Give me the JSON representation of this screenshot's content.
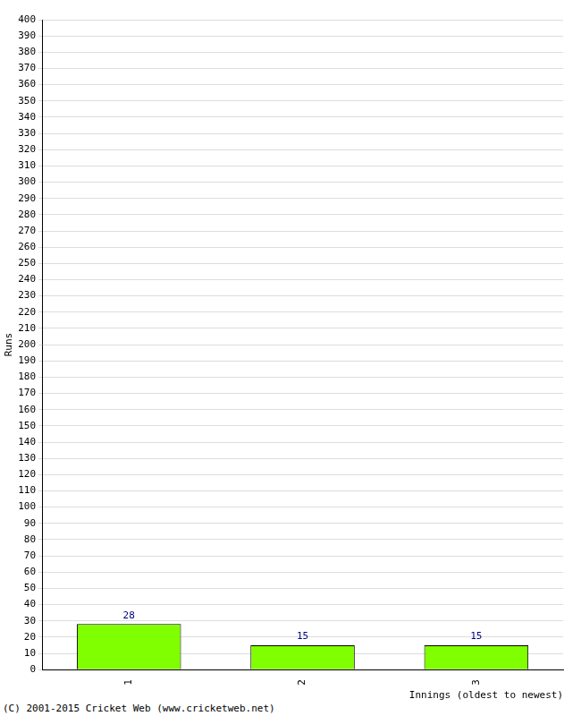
{
  "chart_data": {
    "type": "bar",
    "y_label": "Runs",
    "x_label": "Innings (oldest to newest)",
    "annotations": [
      "(C) 2001-2015 Cricket Web (www.cricketweb.net)"
    ],
    "categories": [
      "1",
      "2",
      "3"
    ],
    "values": [
      28,
      15,
      15
    ],
    "color": "#80ff00",
    "data_labels": true,
    "grid": true,
    "ylim": [
      0,
      400
    ],
    "yticks": [
      0,
      10,
      20,
      30,
      40,
      50,
      60,
      70,
      80,
      90,
      100,
      110,
      120,
      130,
      140,
      150,
      160,
      170,
      180,
      190,
      200,
      210,
      220,
      230,
      240,
      250,
      260,
      270,
      280,
      290,
      300,
      310,
      320,
      330,
      340,
      350,
      360,
      370,
      380,
      390,
      400
    ]
  }
}
